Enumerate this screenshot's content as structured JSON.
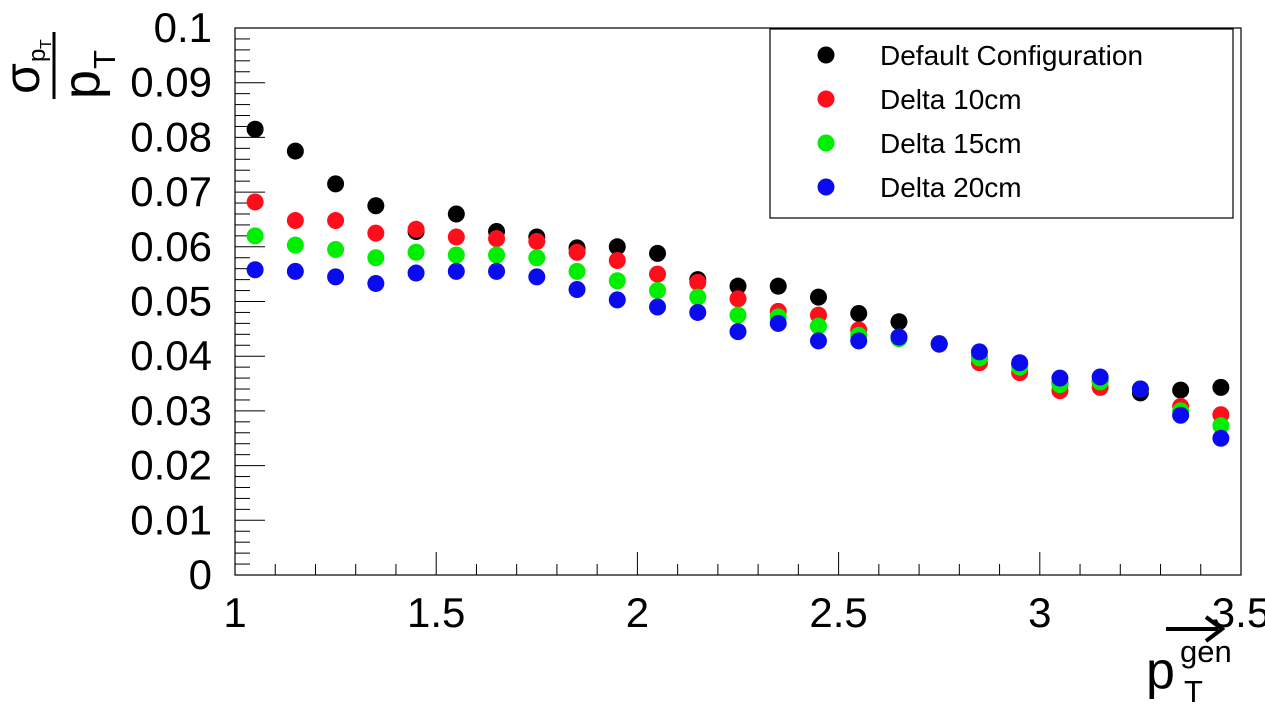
{
  "chart_data": {
    "type": "scatter",
    "title": "",
    "xlabel": {
      "base": "p",
      "subscript": "T",
      "superscript": "gen",
      "vector_arrow": true
    },
    "ylabel": {
      "numerator_base": "σ",
      "numerator_subscript_base": "p",
      "numerator_subscript_subscript": "T",
      "denominator_base": "p",
      "denominator_subscript": "T"
    },
    "xlim": [
      1,
      3.5
    ],
    "ylim": [
      0,
      0.1
    ],
    "x_ticks": [
      1,
      1.5,
      2,
      2.5,
      3,
      3.5
    ],
    "x_tick_labels": [
      "1",
      "1.5",
      "2",
      "2.5",
      "3",
      "3.5"
    ],
    "y_ticks": [
      0,
      0.01,
      0.02,
      0.03,
      0.04,
      0.05,
      0.06,
      0.07,
      0.08,
      0.09,
      0.1
    ],
    "y_tick_labels": [
      "0",
      "0.01",
      "0.02",
      "0.03",
      "0.04",
      "0.05",
      "0.06",
      "0.07",
      "0.08",
      "0.09",
      "0.1"
    ],
    "grid": false,
    "legend_position": "top-right",
    "x": [
      1.05,
      1.15,
      1.25,
      1.35,
      1.45,
      1.55,
      1.65,
      1.75,
      1.85,
      1.95,
      2.05,
      2.15,
      2.25,
      2.35,
      2.45,
      2.55,
      2.65,
      2.75,
      2.85,
      2.95,
      3.05,
      3.15,
      3.25,
      3.35,
      3.45
    ],
    "series": [
      {
        "name": "Default Configuration",
        "color": "#000000",
        "values": [
          0.0815,
          0.0775,
          0.0715,
          0.0675,
          0.0628,
          0.066,
          0.0628,
          0.0618,
          0.0598,
          0.06,
          0.0588,
          0.054,
          0.0528,
          0.0528,
          0.0508,
          0.0478,
          0.0463,
          0.0423,
          0.0398,
          0.0385,
          0.035,
          0.0355,
          0.0333,
          0.0338,
          0.0343
        ]
      },
      {
        "name": "Delta 10cm",
        "color": "#ff0d1a",
        "values": [
          0.0682,
          0.0648,
          0.0648,
          0.0625,
          0.0632,
          0.0618,
          0.0615,
          0.061,
          0.059,
          0.0575,
          0.055,
          0.0535,
          0.0505,
          0.0482,
          0.0475,
          0.0448,
          0.0435,
          0.0422,
          0.0388,
          0.037,
          0.0337,
          0.0343,
          0.034,
          0.0308,
          0.0293
        ]
      },
      {
        "name": "Delta 15cm",
        "color": "#00ee00",
        "values": [
          0.062,
          0.0603,
          0.0595,
          0.058,
          0.059,
          0.0585,
          0.0585,
          0.058,
          0.0555,
          0.0538,
          0.052,
          0.0508,
          0.0475,
          0.0472,
          0.0455,
          0.0438,
          0.0432,
          0.0422,
          0.0397,
          0.038,
          0.0348,
          0.0353,
          0.034,
          0.03,
          0.0273
        ]
      },
      {
        "name": "Delta 20cm",
        "color": "#0a0aee",
        "values": [
          0.0558,
          0.0555,
          0.0545,
          0.0533,
          0.0552,
          0.0555,
          0.0555,
          0.0545,
          0.0522,
          0.0503,
          0.049,
          0.048,
          0.0445,
          0.046,
          0.0428,
          0.0428,
          0.0435,
          0.0422,
          0.0408,
          0.0388,
          0.036,
          0.0362,
          0.034,
          0.0292,
          0.025
        ]
      }
    ]
  }
}
